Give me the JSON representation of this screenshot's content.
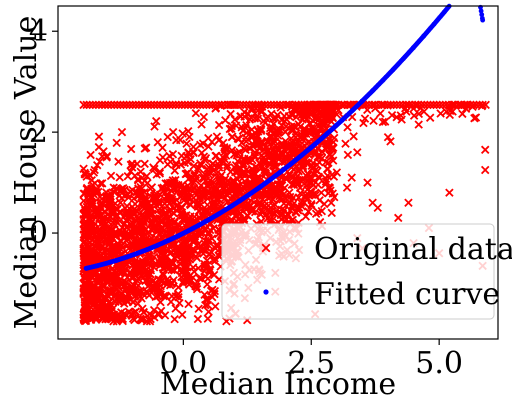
{
  "chart_data": {
    "type": "scatter",
    "title": "",
    "xlabel": "Median Income",
    "ylabel": "Median House Value",
    "xlim": [
      -2.45,
      6.15
    ],
    "ylim": [
      -2.1,
      4.5
    ],
    "xticks": [
      0.0,
      2.5,
      5.0
    ],
    "xtick_labels": [
      "0.0",
      "2.5",
      "5.0"
    ],
    "yticks": [
      0,
      2,
      4
    ],
    "ytick_labels": [
      "0",
      "2",
      "4"
    ],
    "grid": false,
    "legend_position": "bottom-right",
    "series": [
      {
        "name": "Original data",
        "marker": "x",
        "color": "#ff0000",
        "cap_value": 2.54,
        "points": [
          [
            -1.8,
            -1.2
          ],
          [
            -1.6,
            -0.9
          ],
          [
            -1.4,
            -0.5
          ],
          [
            -1.2,
            -1.3
          ],
          [
            -1.0,
            -0.2
          ],
          [
            -0.8,
            -1.5
          ],
          [
            -0.6,
            0.1
          ],
          [
            -0.4,
            -0.8
          ],
          [
            -0.2,
            0.4
          ],
          [
            0.0,
            -1.0
          ],
          [
            0.2,
            0.7
          ],
          [
            0.4,
            -0.3
          ],
          [
            0.6,
            1.0
          ],
          [
            0.8,
            0.2
          ],
          [
            1.0,
            1.3
          ],
          [
            1.2,
            0.5
          ],
          [
            1.4,
            1.6
          ],
          [
            1.6,
            0.8
          ],
          [
            1.8,
            1.9
          ],
          [
            2.0,
            1.1
          ],
          [
            2.2,
            2.1
          ],
          [
            2.4,
            1.4
          ],
          [
            2.6,
            2.0
          ],
          [
            2.8,
            1.7
          ],
          [
            3.0,
            1.2
          ],
          [
            3.2,
            0.9
          ],
          [
            3.4,
            1.6
          ],
          [
            3.6,
            1.0
          ],
          [
            3.8,
            0.5
          ],
          [
            4.0,
            1.9
          ],
          [
            4.2,
            0.3
          ],
          [
            4.5,
            -0.2
          ],
          [
            4.8,
            0.1
          ],
          [
            5.0,
            -0.4
          ],
          [
            5.2,
            0.8
          ],
          [
            3.4,
            -0.1
          ],
          [
            3.5,
            -0.3
          ],
          [
            3.7,
            0.6
          ],
          [
            4.4,
            0.6
          ],
          [
            5.9,
            1.65
          ],
          [
            5.9,
            1.25
          ],
          [
            -1.8,
            0.2
          ],
          [
            -1.75,
            1.2
          ],
          [
            -1.5,
            1.5
          ],
          [
            -1.0,
            1.3
          ],
          [
            -0.5,
            1.8
          ],
          [
            0.1,
            1.6
          ],
          [
            0.8,
            1.7
          ],
          [
            1.7,
            -0.1
          ],
          [
            2.3,
            0.6
          ],
          [
            -1.9,
            -1.6
          ],
          [
            -1.3,
            -1.75
          ],
          [
            -0.5,
            -1.6
          ],
          [
            0.3,
            -1.5
          ],
          [
            1.0,
            -1.2
          ],
          [
            1.5,
            -0.8
          ],
          [
            2.2,
            -0.5
          ],
          [
            2.9,
            0.4
          ],
          [
            3.3,
            2.3
          ],
          [
            -1.95,
            -0.7
          ],
          [
            5.85,
            -0.65
          ],
          [
            4.6,
            2.15
          ],
          [
            3.9,
            2.2
          ],
          [
            -0.2,
            2.0
          ],
          [
            -1.2,
            2.0
          ],
          [
            0.4,
            2.3
          ],
          [
            2.6,
            2.3
          ],
          [
            1.3,
            2.25
          ],
          [
            3.0,
            2.35
          ],
          [
            -1.7,
            -0.2
          ]
        ]
      },
      {
        "name": "Fitted curve",
        "marker": "dot",
        "color": "#0000ff",
        "x": [
          -1.9,
          -1.7,
          -1.5,
          -1.3,
          -1.1,
          -0.9,
          -0.7,
          -0.5,
          -0.3,
          -0.1,
          0.1,
          0.3,
          0.5,
          0.7,
          0.9,
          1.1,
          1.3,
          1.5,
          1.7,
          1.9,
          2.1,
          2.3,
          2.5,
          2.7,
          2.9,
          3.1,
          3.3,
          3.5,
          3.7,
          3.9,
          4.1,
          4.3,
          4.5,
          4.7,
          4.9,
          5.1,
          5.3,
          5.5,
          5.7,
          5.85
        ],
        "y": [
          -0.7,
          -0.653,
          -0.599,
          -0.54,
          -0.474,
          -0.402,
          -0.325,
          -0.241,
          -0.151,
          -0.056,
          0.046,
          0.153,
          0.265,
          0.383,
          0.507,
          0.637,
          0.772,
          0.912,
          1.058,
          1.21,
          1.367,
          1.53,
          1.698,
          1.871,
          2.05,
          2.235,
          2.425,
          2.62,
          2.821,
          3.028,
          3.239,
          3.456,
          3.679,
          3.907,
          4.141,
          4.38,
          4.624,
          4.874,
          5.129,
          4.22
        ]
      }
    ]
  }
}
